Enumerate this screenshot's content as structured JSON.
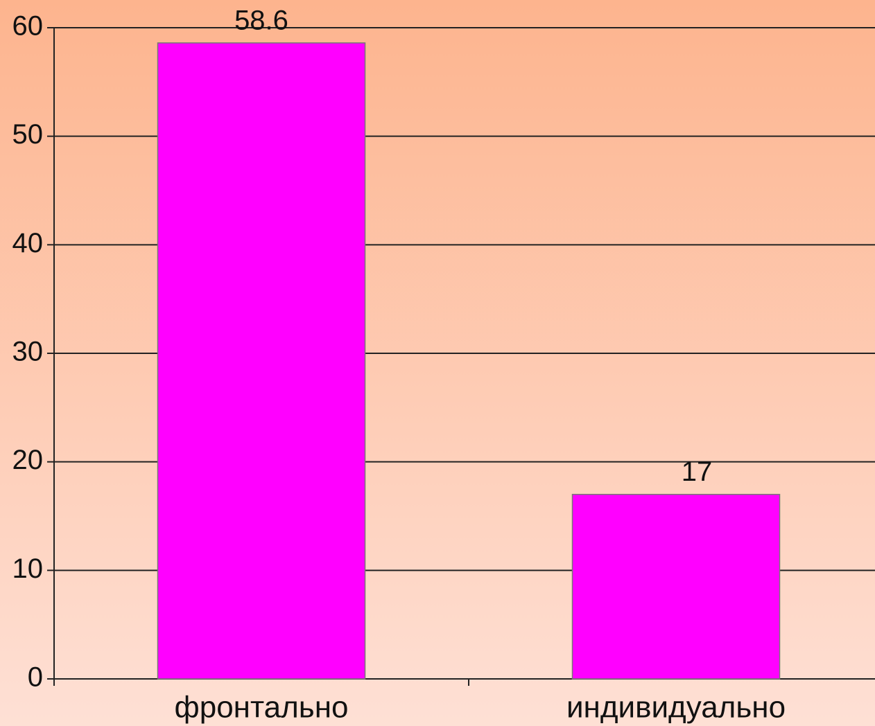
{
  "chart_data": {
    "type": "bar",
    "categories": [
      "фронтально",
      "индивидуально"
    ],
    "values": [
      58.6,
      17
    ],
    "color": "#ff00ff",
    "ylim": [
      0,
      60
    ],
    "yticks": [
      0,
      10,
      20,
      30,
      40,
      50,
      60
    ],
    "grid": true
  }
}
